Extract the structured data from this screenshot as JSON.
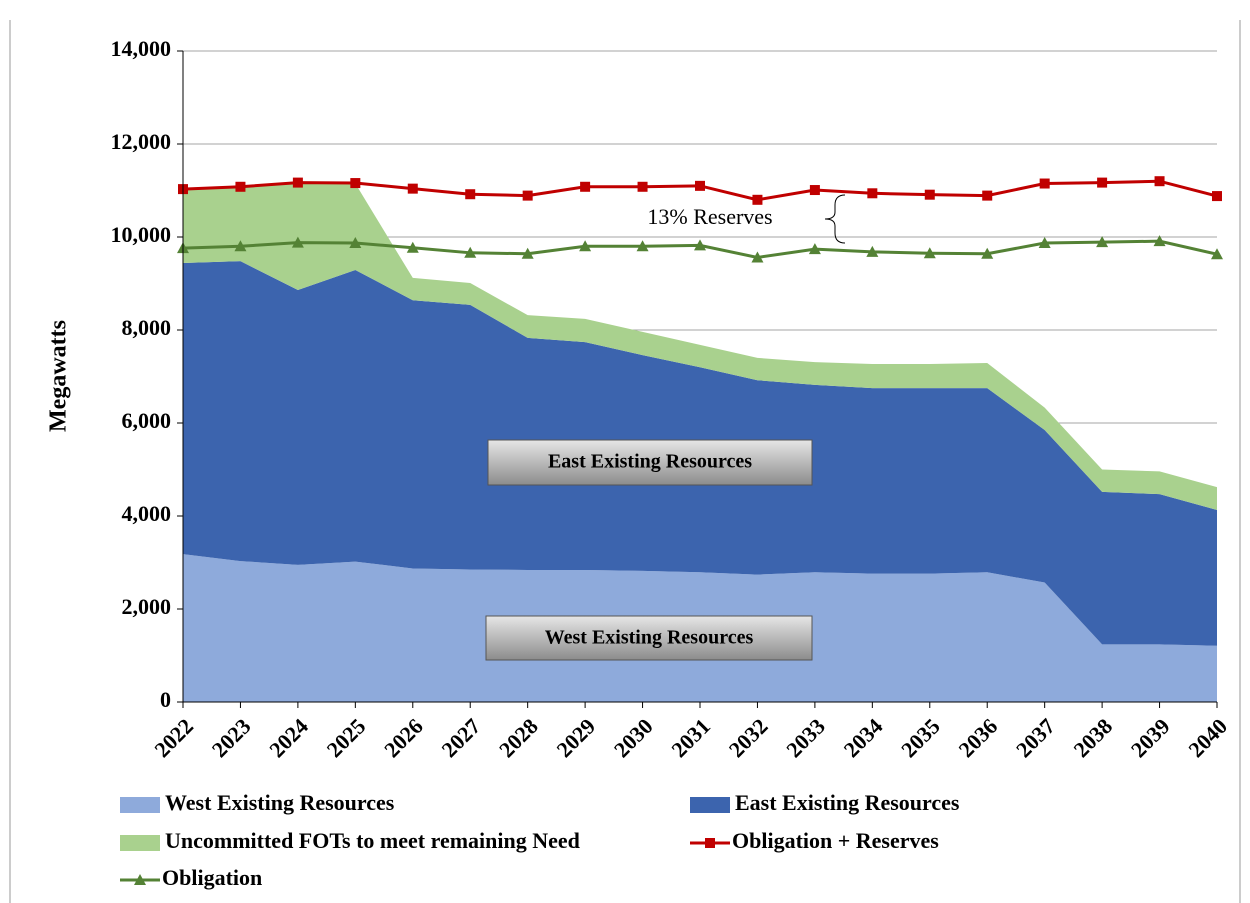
{
  "chart_data": {
    "type": "area",
    "ylabel": "Megawatts",
    "categories": [
      "2022",
      "2023",
      "2024",
      "2025",
      "2026",
      "2027",
      "2028",
      "2029",
      "2030",
      "2031",
      "2032",
      "2033",
      "2034",
      "2035",
      "2036",
      "2037",
      "2038",
      "2039",
      "2040"
    ],
    "series": [
      {
        "name": "West Existing Resources",
        "type": "area",
        "color": "#8eaadb",
        "values": [
          3180,
          3030,
          2950,
          3020,
          2870,
          2850,
          2840,
          2840,
          2820,
          2790,
          2740,
          2790,
          2760,
          2760,
          2790,
          2570,
          1240,
          1240,
          1210
        ]
      },
      {
        "name": "East Existing Resources",
        "type": "area",
        "color": "#3c64ae",
        "values": [
          6260,
          6450,
          5910,
          6270,
          5770,
          5690,
          4990,
          4900,
          4640,
          4410,
          4180,
          4030,
          3990,
          3990,
          3960,
          3280,
          3280,
          3230,
          2920
        ]
      },
      {
        "name": "Uncommitted FOTs to meet remaining Need",
        "type": "area",
        "color": "#a9d18e",
        "values": [
          1590,
          1580,
          2300,
          1860,
          480,
          470,
          490,
          500,
          500,
          480,
          480,
          490,
          520,
          520,
          540,
          480,
          480,
          490,
          490
        ]
      },
      {
        "name": "Obligation + Reserves",
        "type": "line",
        "marker": "square",
        "color": "#c00000",
        "values": [
          11030,
          11080,
          11170,
          11160,
          11040,
          10920,
          10890,
          11080,
          11080,
          11100,
          10800,
          11010,
          10940,
          10910,
          10890,
          11150,
          11170,
          11200,
          10880
        ]
      },
      {
        "name": "Obligation",
        "type": "line",
        "marker": "triangle",
        "color": "#548235",
        "values": [
          9760,
          9800,
          9880,
          9870,
          9770,
          9660,
          9640,
          9800,
          9800,
          9820,
          9560,
          9740,
          9680,
          9650,
          9640,
          9870,
          9890,
          9910,
          9630
        ]
      }
    ],
    "annotations": [
      "East Existing Resources",
      "West Existing Resources",
      "13% Reserves"
    ],
    "ylim": [
      0,
      14000
    ],
    "yticks": [
      0,
      {
        "value": 2000,
        "label": "2,000"
      },
      {
        "value": 4000,
        "label": "4,000"
      },
      {
        "value": 6000,
        "label": "6,000"
      },
      {
        "value": 8000,
        "label": "8,000"
      },
      {
        "value": 10000,
        "label": "10,000"
      },
      {
        "value": 12000,
        "label": "12,000"
      },
      {
        "value": 14000,
        "label": "14,000"
      }
    ],
    "grid": true,
    "legend": "bottom"
  }
}
